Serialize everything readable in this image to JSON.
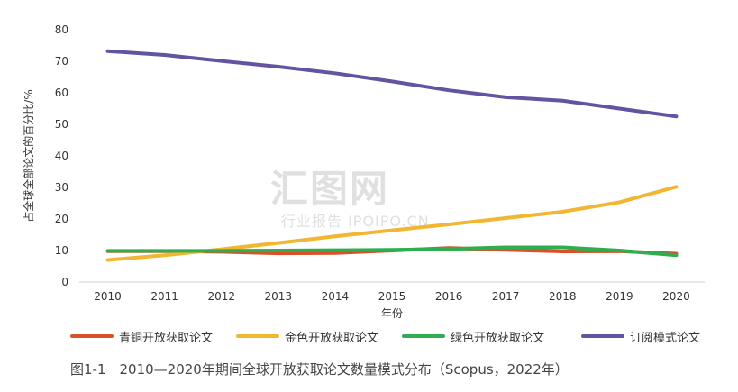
{
  "chart_data": {
    "type": "line",
    "x": [
      "2010",
      "2011",
      "2012",
      "2013",
      "2014",
      "2015",
      "2016",
      "2017",
      "2018",
      "2019",
      "2020"
    ],
    "xlabel": "年份",
    "ylabel": "占全球全部论文的百分比/%",
    "ylim": [
      0,
      80
    ],
    "yticks": [
      0,
      10,
      20,
      30,
      40,
      50,
      60,
      70,
      80
    ],
    "grid": false,
    "legend_position": "bottom",
    "series": [
      {
        "name": "青铜开放获取论文",
        "color": "#d9502b",
        "values": [
          9.8,
          9.8,
          9.6,
          9.1,
          9.2,
          10.0,
          10.8,
          10.2,
          9.7,
          9.8,
          9.0
        ]
      },
      {
        "name": "金色开放获取论文",
        "color": "#f2b632",
        "values": [
          7.0,
          8.5,
          10.4,
          12.4,
          14.5,
          16.4,
          18.3,
          20.3,
          22.3,
          25.3,
          30.2
        ]
      },
      {
        "name": "绿色开放获取论文",
        "color": "#2fae4f",
        "values": [
          9.9,
          9.9,
          9.9,
          10.0,
          10.1,
          10.2,
          10.5,
          11.0,
          11.0,
          10.0,
          8.5
        ]
      },
      {
        "name": "订阅模式论文",
        "color": "#6453a0",
        "values": [
          73.2,
          72.0,
          70.1,
          68.3,
          66.2,
          63.6,
          60.8,
          58.6,
          57.5,
          55.0,
          52.5
        ]
      }
    ]
  },
  "caption": "图1-1　2010—2020年期间全球开放获取论文数量模式分布（Scopus，2022年）",
  "watermark": {
    "main": "汇图网",
    "sub": "行业报告 IPOIPO.CN"
  }
}
